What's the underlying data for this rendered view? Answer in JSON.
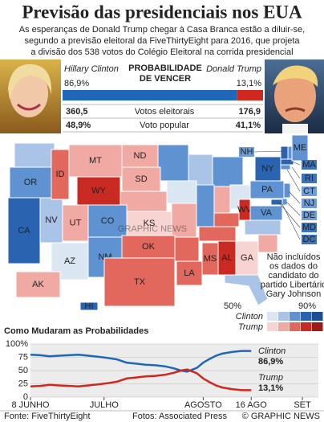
{
  "header": {
    "title": "Previsão das presidenciais nos EUA",
    "intro": [
      "As esperanças de Donald Trump chegar à Casa Branca estão a diluir-se,",
      "segundo a previsão eleitoral da FiveThirtyEight para 2016, que projeta",
      "a divisão dos 538 votos do Colégio Eleitoral na corrida presidencial"
    ]
  },
  "probability_heading": [
    "PROBABILIDADE",
    "DE VENCER"
  ],
  "row_labels": [
    "Votos eleitorais",
    "Voto popular"
  ],
  "candidates": [
    {
      "name": "Hillary Clinton",
      "color": "#1f67b8",
      "probability": 86.9,
      "probability_label": "86,9%",
      "electoral_votes": "360,5",
      "popular_vote": "48,9%"
    },
    {
      "name": "Donald Trump",
      "color": "#d0271f",
      "probability": 13.1,
      "probability_label": "13,1%",
      "electoral_votes": "176,9",
      "popular_vote": "41,1%"
    }
  ],
  "map": {
    "watermark": "GRAPHIC NEWS",
    "states": [
      {
        "label": "OR",
        "color": "#5e92d0"
      },
      {
        "label": "CA",
        "color": "#2a64b0"
      },
      {
        "label": "NV",
        "color": "#a9c4e6"
      },
      {
        "label": "ID",
        "color": "#e2675d"
      },
      {
        "label": "MT",
        "color": "#f0a9a3"
      },
      {
        "label": "WY",
        "color": "#c92a22"
      },
      {
        "label": "UT",
        "color": "#f0a9a3"
      },
      {
        "label": "AZ",
        "color": "#dbe6f3"
      },
      {
        "label": "CO",
        "color": "#5e92d0"
      },
      {
        "label": "NM",
        "color": "#5e92d0"
      },
      {
        "label": "ND",
        "color": "#f0a9a3"
      },
      {
        "label": "SD",
        "color": "#f0a9a3"
      },
      {
        "label": "KS",
        "color": "#f7d4d1"
      },
      {
        "label": "OK",
        "color": "#e2675d"
      },
      {
        "label": "TX",
        "color": "#e2675d"
      },
      {
        "label": "LA",
        "color": "#e2675d"
      },
      {
        "label": "MS",
        "color": "#e2675d"
      },
      {
        "label": "AL",
        "color": "#c92a22"
      },
      {
        "label": "GA",
        "color": "#f7d4d1"
      },
      {
        "label": "WV",
        "color": "#c92a22"
      },
      {
        "label": "VA",
        "color": "#5e92d0"
      },
      {
        "label": "PA",
        "color": "#5e92d0"
      },
      {
        "label": "NY",
        "color": "#2a64b0"
      },
      {
        "label": "ME",
        "color": "#5e92d0"
      },
      {
        "label": "AK",
        "color": "#f0a9a3"
      },
      {
        "label": "HI",
        "color": "#2a64b0"
      }
    ],
    "callouts": [
      {
        "label": "NH",
        "color": "#5e92d0"
      },
      {
        "label": "MA",
        "color": "#2a64b0"
      },
      {
        "label": "RI",
        "color": "#2a64b0"
      },
      {
        "label": "CT",
        "color": "#5e92d0"
      },
      {
        "label": "NJ",
        "color": "#5e92d0"
      },
      {
        "label": "DE",
        "color": "#5e92d0"
      },
      {
        "label": "MD",
        "color": "#2a64b0"
      },
      {
        "label": "DC",
        "color": "#2a64b0"
      }
    ],
    "note": [
      "Não incluídos",
      "os dados do",
      "candidato do",
      "partido Libertário",
      "Gary Johnson"
    ]
  },
  "legend": {
    "low": "50%",
    "high": "90%",
    "clinton": "Clinton",
    "trump": "Trump",
    "clinton_colors": [
      "#dbe6f3",
      "#a9c4e6",
      "#5e92d0",
      "#2a64b0",
      "#1a4f96"
    ],
    "trump_colors": [
      "#f7d4d1",
      "#f0a9a3",
      "#e2675d",
      "#c92a22",
      "#9e1a14"
    ]
  },
  "chart_data": {
    "type": "line",
    "title": "Como Mudaram as Probabilidades",
    "x": [
      0,
      3,
      6,
      9,
      12,
      15,
      18,
      21,
      24,
      27,
      30,
      33,
      36,
      39,
      42,
      45,
      47,
      49,
      52,
      54,
      56,
      58,
      60,
      63,
      66,
      69
    ],
    "series": [
      {
        "name": "Clinton",
        "color": "#1f67b8",
        "values": [
          80,
          79,
          77,
          78,
          79,
          80,
          78,
          76,
          74,
          71,
          65,
          63,
          61,
          60,
          58,
          54,
          50,
          48,
          55,
          65,
          72,
          78,
          82,
          85,
          87,
          86.9
        ],
        "value_labels": [
          null,
          null,
          null,
          null,
          null,
          null,
          null,
          null,
          null,
          null,
          null,
          null,
          null,
          null,
          null,
          null,
          null,
          null,
          null,
          null,
          null,
          null,
          null,
          null,
          null,
          "86,9%"
        ]
      },
      {
        "name": "Trump",
        "color": "#d0271f",
        "values": [
          20,
          21,
          23,
          22,
          21,
          20,
          22,
          24,
          26,
          29,
          35,
          37,
          39,
          40,
          42,
          46,
          50,
          52,
          45,
          35,
          28,
          22,
          18,
          15,
          13,
          13.1
        ],
        "value_labels": [
          null,
          null,
          null,
          null,
          null,
          null,
          null,
          null,
          null,
          null,
          null,
          null,
          null,
          null,
          null,
          null,
          null,
          null,
          null,
          null,
          null,
          null,
          null,
          null,
          null,
          "13,1%"
        ]
      }
    ],
    "xlim": [
      0,
      90
    ],
    "xticks": [
      {
        "value": 0,
        "label": "8 JUNHO"
      },
      {
        "value": 23,
        "label": "JULHO"
      },
      {
        "value": 54,
        "label": "AGOSTO"
      },
      {
        "value": 69,
        "label": "16 AGO"
      },
      {
        "value": 85,
        "label": "SET"
      }
    ],
    "ylim": [
      0,
      100
    ],
    "yticks": [
      0,
      25,
      50,
      {
        "value": 75,
        "label": "75"
      },
      {
        "value": 100,
        "label": "100%"
      }
    ],
    "grid": true
  },
  "footer": {
    "source": "Fonte: FiveThirtyEight",
    "photos": "Fotos: Associated Press",
    "credit": "© GRAPHIC NEWS"
  }
}
